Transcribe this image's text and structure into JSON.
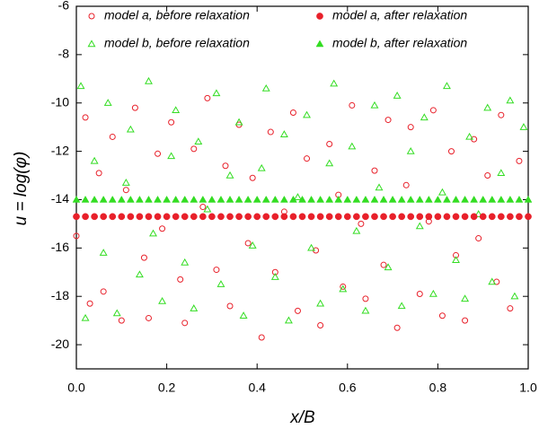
{
  "chart_data": {
    "type": "scatter",
    "xlabel": "x/B",
    "ylabel": "u = log(φ)",
    "xlim": [
      0,
      1
    ],
    "ylim": [
      -21,
      -6
    ],
    "xticks": [
      {
        "value": 0,
        "label": "0.0"
      },
      0.2,
      0.4,
      0.6,
      0.8,
      {
        "value": 1,
        "label": "1.0"
      }
    ],
    "yticks": [
      -20,
      -18,
      -16,
      -14,
      -12,
      -10,
      -8,
      -6
    ],
    "grid": false,
    "legend": "top",
    "series": [
      {
        "name": "model a, before relaxation",
        "color": "#e8202a",
        "marker": "circle-open",
        "x": [
          0.0,
          0.02,
          0.03,
          0.05,
          0.06,
          0.08,
          0.1,
          0.11,
          0.13,
          0.15,
          0.16,
          0.18,
          0.19,
          0.21,
          0.23,
          0.24,
          0.26,
          0.28,
          0.29,
          0.31,
          0.33,
          0.34,
          0.36,
          0.38,
          0.39,
          0.41,
          0.43,
          0.44,
          0.46,
          0.48,
          0.49,
          0.51,
          0.53,
          0.54,
          0.56,
          0.58,
          0.59,
          0.61,
          0.63,
          0.64,
          0.66,
          0.68,
          0.69,
          0.71,
          0.73,
          0.74,
          0.76,
          0.78,
          0.79,
          0.81,
          0.83,
          0.84,
          0.86,
          0.88,
          0.89,
          0.91,
          0.93,
          0.94,
          0.96,
          0.98
        ],
        "values": [
          -15.5,
          -10.6,
          -18.3,
          -12.9,
          -17.8,
          -11.4,
          -19.0,
          -13.6,
          -10.2,
          -16.4,
          -18.9,
          -12.1,
          -15.2,
          -10.8,
          -17.3,
          -19.1,
          -11.9,
          -14.3,
          -9.8,
          -16.9,
          -12.6,
          -18.4,
          -10.9,
          -15.8,
          -13.1,
          -19.7,
          -11.2,
          -17.0,
          -14.5,
          -10.4,
          -18.6,
          -12.3,
          -16.1,
          -19.2,
          -11.7,
          -13.8,
          -17.6,
          -10.1,
          -15.0,
          -18.1,
          -12.8,
          -16.7,
          -10.7,
          -19.3,
          -13.4,
          -11.0,
          -17.9,
          -14.9,
          -10.3,
          -18.8,
          -12.0,
          -16.3,
          -19.0,
          -11.5,
          -15.6,
          -13.0,
          -17.4,
          -10.5,
          -18.5,
          -12.4
        ]
      },
      {
        "name": "model b, before relaxation",
        "color": "#33dd22",
        "marker": "triangle-open",
        "x": [
          0.01,
          0.02,
          0.04,
          0.06,
          0.07,
          0.09,
          0.11,
          0.12,
          0.14,
          0.16,
          0.17,
          0.19,
          0.21,
          0.22,
          0.24,
          0.26,
          0.27,
          0.29,
          0.31,
          0.32,
          0.34,
          0.36,
          0.37,
          0.39,
          0.41,
          0.42,
          0.44,
          0.46,
          0.47,
          0.49,
          0.51,
          0.52,
          0.54,
          0.56,
          0.57,
          0.59,
          0.61,
          0.62,
          0.64,
          0.66,
          0.67,
          0.69,
          0.71,
          0.72,
          0.74,
          0.76,
          0.77,
          0.79,
          0.81,
          0.82,
          0.84,
          0.86,
          0.87,
          0.89,
          0.91,
          0.92,
          0.94,
          0.96,
          0.97,
          0.99
        ],
        "values": [
          -9.3,
          -18.9,
          -12.4,
          -16.2,
          -10.0,
          -18.7,
          -13.3,
          -11.1,
          -17.1,
          -9.1,
          -15.4,
          -18.2,
          -12.2,
          -10.3,
          -16.6,
          -18.5,
          -11.6,
          -14.4,
          -9.6,
          -17.5,
          -13.0,
          -10.8,
          -18.8,
          -15.9,
          -12.7,
          -9.4,
          -17.2,
          -11.3,
          -19.0,
          -13.9,
          -10.5,
          -16.0,
          -18.3,
          -12.5,
          -9.2,
          -17.7,
          -11.8,
          -15.3,
          -18.6,
          -10.1,
          -13.5,
          -16.8,
          -9.7,
          -18.4,
          -12.0,
          -15.1,
          -10.6,
          -17.9,
          -13.7,
          -9.3,
          -16.5,
          -18.1,
          -11.4,
          -14.6,
          -10.2,
          -17.4,
          -12.9,
          -9.9,
          -18.0,
          -11.0
        ]
      },
      {
        "name": "model a, after relaxation",
        "color": "#e8202a",
        "marker": "circle",
        "x": [
          0,
          0.02,
          0.04,
          0.06,
          0.08,
          0.1,
          0.12,
          0.14,
          0.16,
          0.18,
          0.2,
          0.22,
          0.24,
          0.26,
          0.28,
          0.3,
          0.32,
          0.34,
          0.36,
          0.38,
          0.4,
          0.42,
          0.44,
          0.46,
          0.48,
          0.5,
          0.52,
          0.54,
          0.56,
          0.58,
          0.6,
          0.62,
          0.64,
          0.66,
          0.68,
          0.7,
          0.72,
          0.74,
          0.76,
          0.78,
          0.8,
          0.82,
          0.84,
          0.86,
          0.88,
          0.9,
          0.92,
          0.94,
          0.96,
          0.98,
          1
        ],
        "values": [
          -14.7,
          -14.7,
          -14.7,
          -14.7,
          -14.7,
          -14.7,
          -14.7,
          -14.7,
          -14.7,
          -14.7,
          -14.7,
          -14.7,
          -14.7,
          -14.7,
          -14.7,
          -14.7,
          -14.7,
          -14.7,
          -14.7,
          -14.7,
          -14.7,
          -14.7,
          -14.7,
          -14.7,
          -14.7,
          -14.7,
          -14.7,
          -14.7,
          -14.7,
          -14.7,
          -14.7,
          -14.7,
          -14.7,
          -14.7,
          -14.7,
          -14.7,
          -14.7,
          -14.7,
          -14.7,
          -14.7,
          -14.7,
          -14.7,
          -14.7,
          -14.7,
          -14.7,
          -14.7,
          -14.7,
          -14.7,
          -14.7,
          -14.7,
          -14.7
        ]
      },
      {
        "name": "model b, after relaxation",
        "color": "#33dd22",
        "marker": "triangle",
        "x": [
          0,
          0.02,
          0.04,
          0.06,
          0.08,
          0.1,
          0.12,
          0.14,
          0.16,
          0.18,
          0.2,
          0.22,
          0.24,
          0.26,
          0.28,
          0.3,
          0.32,
          0.34,
          0.36,
          0.38,
          0.4,
          0.42,
          0.44,
          0.46,
          0.48,
          0.5,
          0.52,
          0.54,
          0.56,
          0.58,
          0.6,
          0.62,
          0.64,
          0.66,
          0.68,
          0.7,
          0.72,
          0.74,
          0.76,
          0.78,
          0.8,
          0.82,
          0.84,
          0.86,
          0.88,
          0.9,
          0.92,
          0.94,
          0.96,
          0.98,
          1
        ],
        "values": [
          -14.0,
          -14.0,
          -14.0,
          -14.0,
          -14.0,
          -14.0,
          -14.0,
          -14.0,
          -14.0,
          -14.0,
          -14.0,
          -14.0,
          -14.0,
          -14.0,
          -14.0,
          -14.0,
          -14.0,
          -14.0,
          -14.0,
          -14.0,
          -14.0,
          -14.0,
          -14.0,
          -14.0,
          -14.0,
          -14.0,
          -14.0,
          -14.0,
          -14.0,
          -14.0,
          -14.0,
          -14.0,
          -14.0,
          -14.0,
          -14.0,
          -14.0,
          -14.0,
          -14.0,
          -14.0,
          -14.0,
          -14.0,
          -14.0,
          -14.0,
          -14.0,
          -14.0,
          -14.0,
          -14.0,
          -14.0,
          -14.0,
          -14.0,
          -14.0
        ]
      }
    ]
  }
}
